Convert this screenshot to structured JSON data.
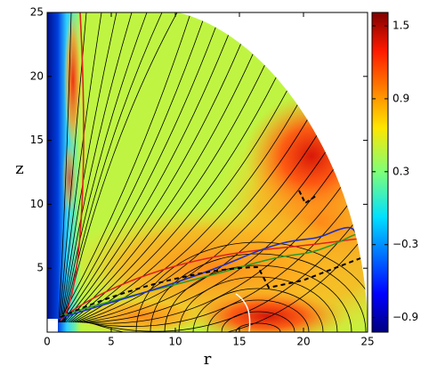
{
  "chart_data": {
    "type": "heatmap",
    "xlabel": "r",
    "ylabel": "z",
    "xlim": [
      0,
      25
    ],
    "ylim": [
      0,
      25
    ],
    "xticks": [
      0,
      5,
      10,
      15,
      20,
      25
    ],
    "yticks": [
      5,
      10,
      15,
      20,
      25
    ],
    "colormap": "jet",
    "clim": [
      -1.02,
      1.61
    ],
    "cticks": [
      {
        "value": -0.9,
        "label": "−0.9"
      },
      {
        "value": -0.3,
        "label": "−0.3"
      },
      0.3,
      0.9,
      1.5
    ]
  }
}
